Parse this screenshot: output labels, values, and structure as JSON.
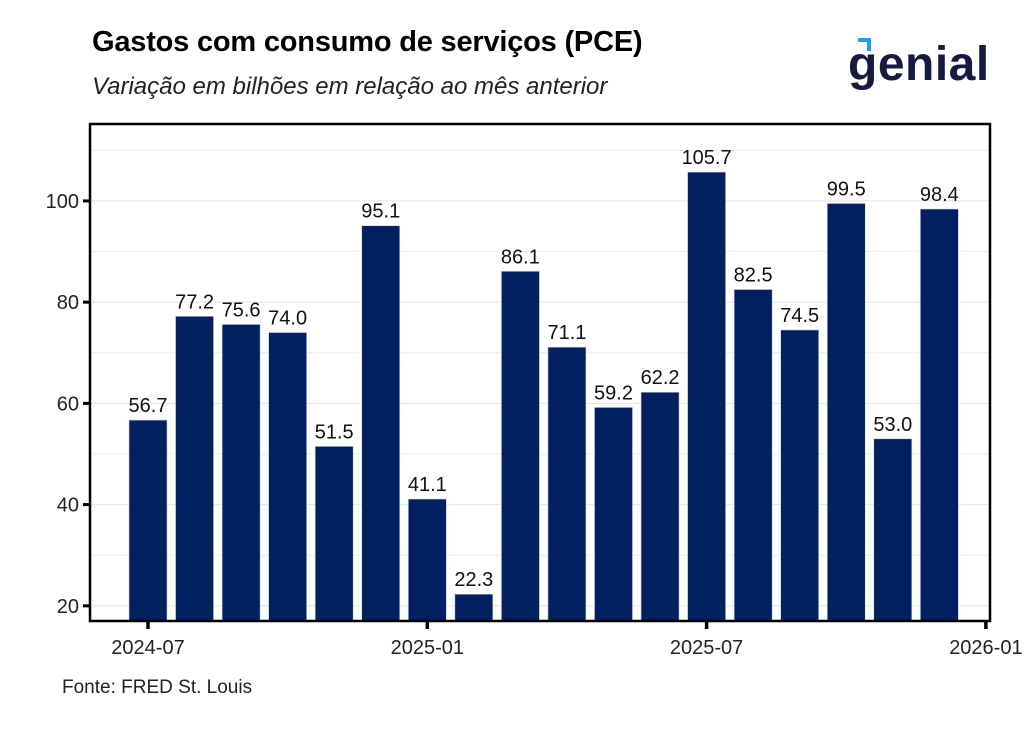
{
  "chart_data": {
    "type": "bar",
    "title": "Gastos com consumo de serviços (PCE)",
    "subtitle": "Variação em bilhões em relação ao mês anterior",
    "xlabel": "",
    "ylabel": "",
    "categories": [
      "2024-07",
      "2024-08",
      "2024-09",
      "2024-10",
      "2024-11",
      "2024-12",
      "2025-01",
      "2025-02",
      "2025-03",
      "2025-04",
      "2025-05",
      "2025-06",
      "2025-07",
      "2025-08",
      "2025-09",
      "2025-10",
      "2025-11",
      "2025-12"
    ],
    "values": [
      56.7,
      77.2,
      75.6,
      74.0,
      51.5,
      95.1,
      41.1,
      22.3,
      86.1,
      71.1,
      59.2,
      62.2,
      105.7,
      82.5,
      74.5,
      99.5,
      53.0,
      98.4
    ],
    "value_labels": [
      "56.7",
      "77.2",
      "75.6",
      "74.0",
      "51.5",
      "95.1",
      "41.1",
      "22.3",
      "86.1",
      "71.1",
      "59.2",
      "62.2",
      "105.7",
      "82.5",
      "74.5",
      "99.5",
      "53.0",
      "98.4"
    ],
    "ylim": [
      17,
      115.2
    ],
    "y_ticks": [
      20,
      40,
      60,
      80,
      100
    ],
    "y_tick_labels": [
      "20",
      "40",
      "60",
      "80",
      "100"
    ],
    "y_minor_gridlines": [
      30,
      50,
      70,
      90,
      110
    ],
    "x_ticks": [
      "2024-07",
      "2025-01",
      "2025-07",
      "2026-01"
    ],
    "x_tick_labels": [
      "2024-07",
      "2025-01",
      "2025-07",
      "2026-01"
    ],
    "grid": true,
    "legend": "none",
    "bar_color": "#002060",
    "source": "Fonte: FRED St. Louis"
  },
  "header": {
    "title": "Gastos com consumo de serviços (PCE)",
    "subtitle": "Variação em bilhões em relação ao mês anterior"
  },
  "logo": {
    "text": "genial",
    "text_color": "#161a3f",
    "accent_color": "#1e9bf0"
  },
  "footer": {
    "source": "Fonte: FRED St. Louis"
  }
}
